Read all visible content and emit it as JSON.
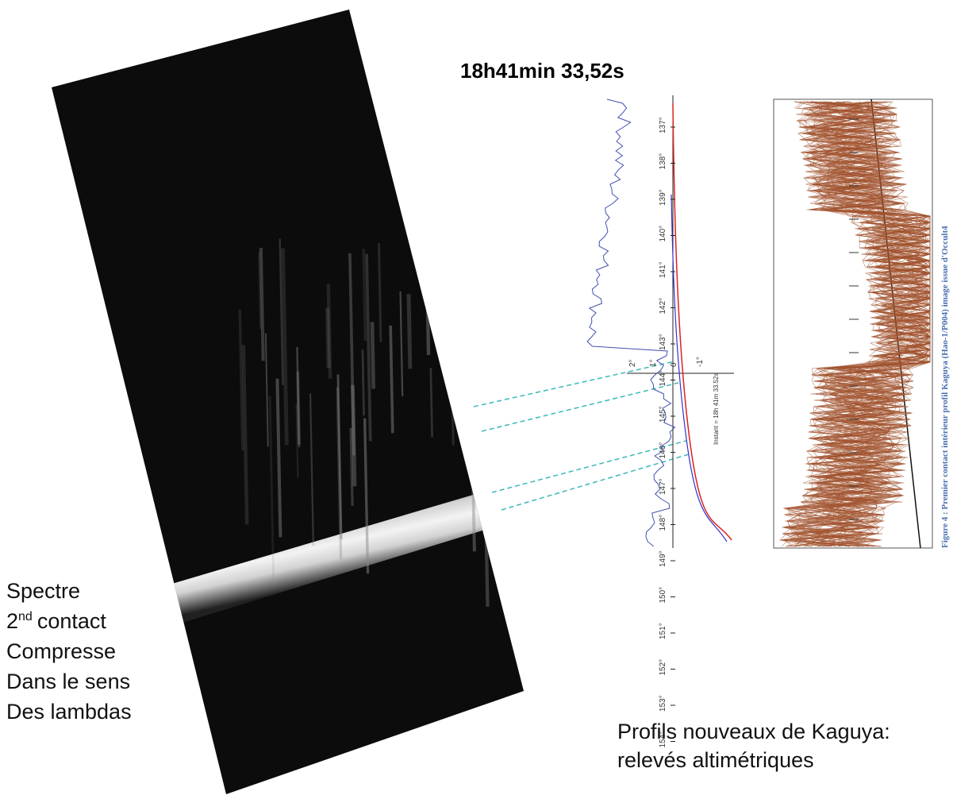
{
  "title": "18h41min 33,52s",
  "spectrum_caption": {
    "line1": "Spectre",
    "line2_number": "2",
    "line2_sup": "nd",
    "line2_rest": "contact",
    "line3": "Compresse",
    "line4": "Dans le sens",
    "line5": "Des lambdas"
  },
  "profile": {
    "y_labels": [
      "137°",
      "138°",
      "139°",
      "140°",
      "141°",
      "142°",
      "143°",
      "144°",
      "145°",
      "146°",
      "147°",
      "148°",
      "149°",
      "150°",
      "151°",
      "152°",
      "153°",
      "154°"
    ],
    "x_labels": [
      "2°",
      "1°",
      "0",
      "-1°"
    ],
    "instant": "Instant = 18h 41m 33.52s"
  },
  "kaguya": {
    "caption": "Figure 4 : Premier contact intérieur profil Kaguya (Hao-1/P004) image issue d'Occult4"
  },
  "bottom_caption": {
    "line1": "Profils nouveaux de Kaguya:",
    "line2": "relevés altimétriques"
  }
}
